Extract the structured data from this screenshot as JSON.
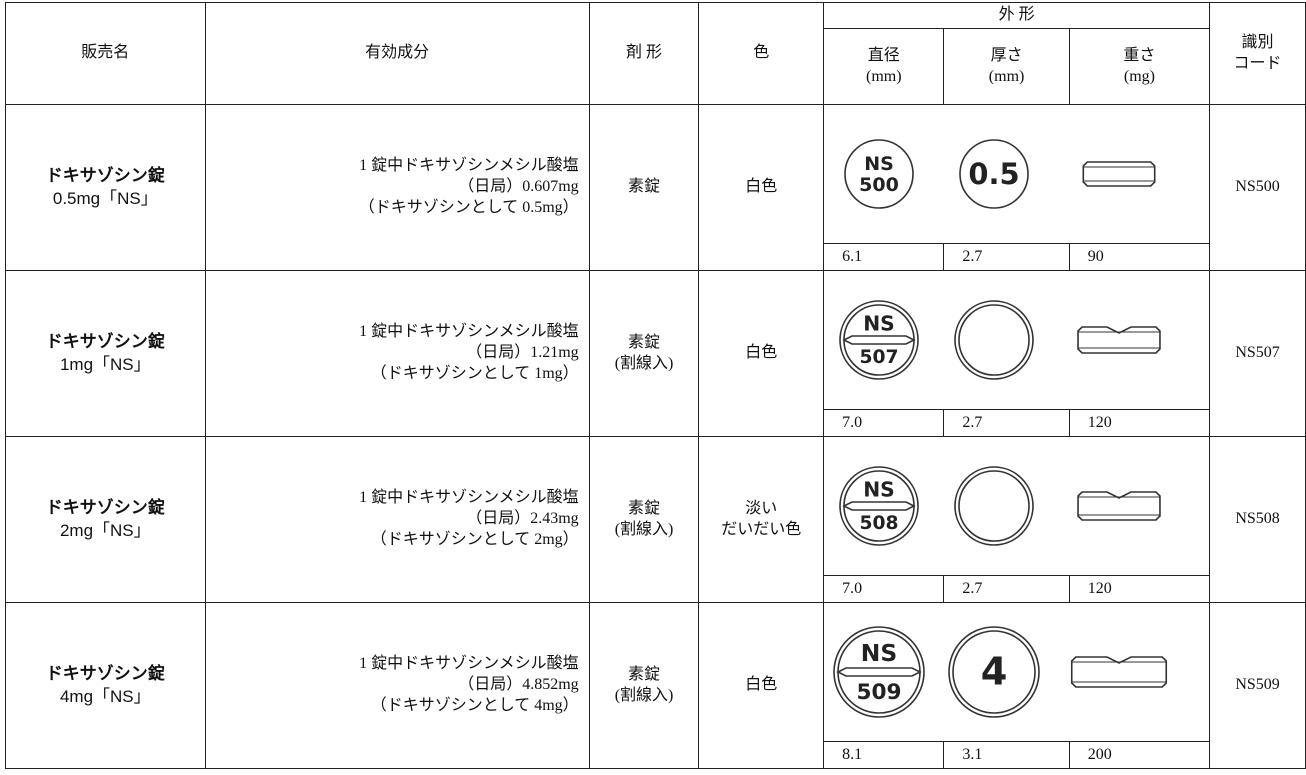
{
  "header": {
    "name": "販売名",
    "ingredient": "有効成分",
    "form": "剤 形",
    "color": "色",
    "shape": "外 形",
    "diameter": "直径",
    "diameter_unit": "(mm)",
    "thickness": "厚さ",
    "thickness_unit": "(mm)",
    "weight": "重さ",
    "weight_unit": "(mg)",
    "code": [
      "識別",
      "コード"
    ]
  },
  "rows": [
    {
      "name": [
        "ドキサゾシン錠",
        "0.5mg「NS」"
      ],
      "ingredient": [
        "1 錠中ドキサゾシンメシル酸塩",
        "（日局）0.607mg",
        "（ドキサゾシンとして 0.5mg）"
      ],
      "form": [
        "素錠"
      ],
      "color": [
        "白色"
      ],
      "front": [
        "NS",
        "500"
      ],
      "back": "0.5",
      "diameter": "6.1",
      "thickness": "2.7",
      "weight": "90",
      "code": "NS500"
    },
    {
      "name": [
        "ドキサゾシン錠",
        "1mg「NS」"
      ],
      "ingredient": [
        "1 錠中ドキサゾシンメシル酸塩",
        "（日局）1.21mg",
        "（ドキサゾシンとして 1mg）"
      ],
      "form": [
        "素錠",
        "(割線入)"
      ],
      "color": [
        "白色"
      ],
      "front": [
        "NS",
        "507"
      ],
      "diameter": "7.0",
      "thickness": "2.7",
      "weight": "120",
      "code": "NS507"
    },
    {
      "name": [
        "ドキサゾシン錠",
        "2mg「NS」"
      ],
      "ingredient": [
        "1 錠中ドキサゾシンメシル酸塩",
        "（日局）2.43mg",
        "（ドキサゾシンとして 2mg）"
      ],
      "form": [
        "素錠",
        "(割線入)"
      ],
      "color": [
        "淡い",
        "だいだい色"
      ],
      "front": [
        "NS",
        "508"
      ],
      "diameter": "7.0",
      "thickness": "2.7",
      "weight": "120",
      "code": "NS508"
    },
    {
      "name": [
        "ドキサゾシン錠",
        "4mg「NS」"
      ],
      "ingredient": [
        "1 錠中ドキサゾシンメシル酸塩",
        "（日局）4.852mg",
        "（ドキサゾシンとして 4mg）"
      ],
      "form": [
        "素錠",
        "(割線入)"
      ],
      "color": [
        "白色"
      ],
      "front": [
        "NS",
        "509"
      ],
      "back": "4",
      "diameter": "8.1",
      "thickness": "3.1",
      "weight": "200",
      "code": "NS509"
    }
  ]
}
